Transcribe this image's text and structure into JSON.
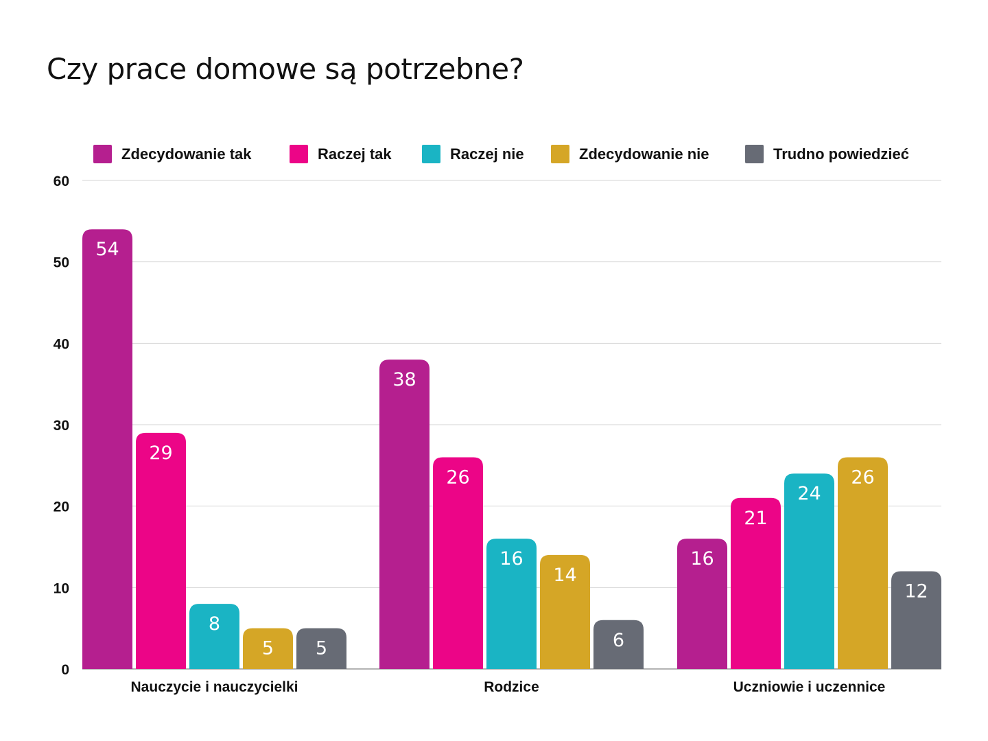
{
  "chart_data": {
    "type": "bar",
    "title": "Czy prace domowe są potrzebne?",
    "xlabel": "",
    "ylabel": "",
    "ylim": [
      0,
      60
    ],
    "yticks": [
      0,
      10,
      20,
      30,
      40,
      50,
      60
    ],
    "grid": true,
    "legend_position": "top",
    "categories": [
      "Nauczycie i nauczycielki",
      "Rodzice",
      "Uczniowie i uczennice"
    ],
    "series": [
      {
        "name": "Zdecydowanie tak",
        "color": "#B51F8F",
        "values": [
          54,
          38,
          16
        ]
      },
      {
        "name": "Raczej tak",
        "color": "#EC0587",
        "values": [
          29,
          26,
          21
        ]
      },
      {
        "name": "Raczej nie",
        "color": "#1AB4C4",
        "values": [
          8,
          16,
          24
        ]
      },
      {
        "name": "Zdecydowanie nie",
        "color": "#D5A626",
        "values": [
          5,
          14,
          26
        ]
      },
      {
        "name": "Trudno powiedzieć",
        "color": "#676B75",
        "values": [
          5,
          6,
          12
        ]
      }
    ]
  }
}
